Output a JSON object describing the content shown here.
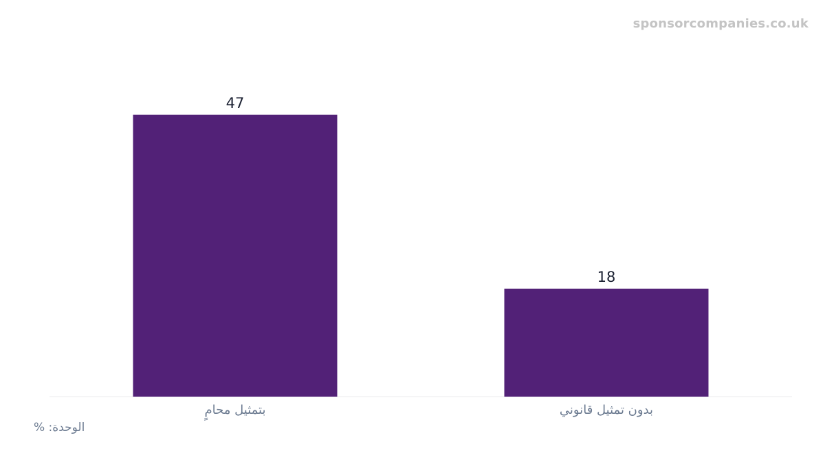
{
  "watermark": "sponsorcompanies.co.uk",
  "unit_label": "الوحدة: %",
  "colors": {
    "bar": "#522177",
    "value_label": "#1c2233",
    "category_label": "#6b7a90",
    "baseline": "#f2f2f4",
    "watermark": "#c4c4c4"
  },
  "chart_data": {
    "type": "bar",
    "categories": [
      "بتمثيل محامٍ",
      "بدون تمثيل قانوني"
    ],
    "values": [
      47,
      18
    ],
    "title": "",
    "xlabel": "",
    "ylabel": "",
    "ylim": [
      0,
      49.5
    ],
    "grid": false,
    "data_labels": [
      "47",
      "18"
    ]
  }
}
